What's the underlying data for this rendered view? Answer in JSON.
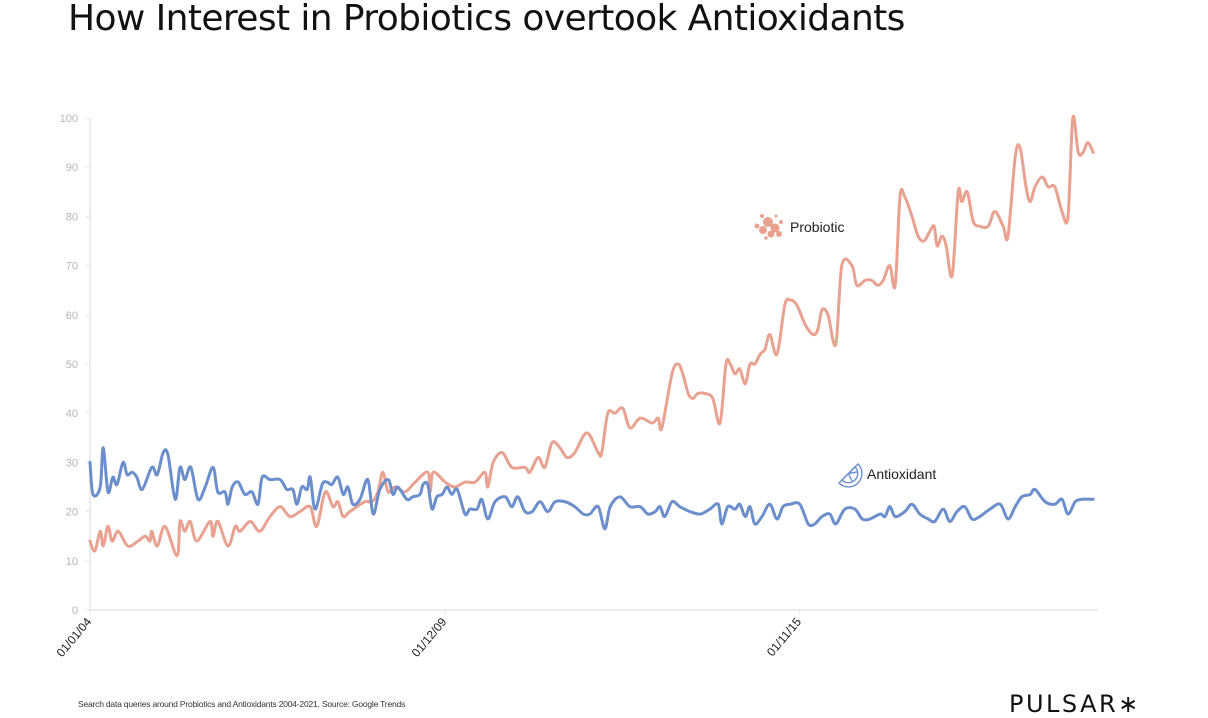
{
  "title": "How Interest in Probiotics overtook Antioxidants",
  "footnote": "Search data queries around Probiotics and Antioxidants 2004-2021. Source: Google Trends",
  "brand": "PULSAR∗",
  "chart_data": {
    "type": "line",
    "title": "How Interest in Probiotics overtook Antioxidants",
    "xlabel": "",
    "ylabel": "",
    "xlim": [
      2004,
      2020.8
    ],
    "ylim": [
      0,
      100
    ],
    "yticks": [
      0,
      10,
      20,
      30,
      40,
      50,
      60,
      70,
      80,
      90,
      100
    ],
    "xticks": [
      {
        "x": 2004.0,
        "label": "01/01/04"
      },
      {
        "x": 2009.92,
        "label": "01/12/09"
      },
      {
        "x": 2015.83,
        "label": "01/11/15"
      }
    ],
    "grid": false,
    "series": [
      {
        "name": "Probiotic",
        "color": "#e9a190",
        "icon": "bacteria-icon",
        "points": [
          [
            2004.0,
            14
          ],
          [
            2004.08,
            12
          ],
          [
            2004.17,
            16
          ],
          [
            2004.22,
            13
          ],
          [
            2004.3,
            17
          ],
          [
            2004.37,
            14
          ],
          [
            2004.47,
            16
          ],
          [
            2004.63,
            13
          ],
          [
            2004.8,
            14
          ],
          [
            2004.92,
            15
          ],
          [
            2005.0,
            14
          ],
          [
            2005.03,
            16
          ],
          [
            2005.12,
            13
          ],
          [
            2005.25,
            17
          ],
          [
            2005.45,
            11
          ],
          [
            2005.5,
            18
          ],
          [
            2005.58,
            16
          ],
          [
            2005.67,
            18
          ],
          [
            2005.78,
            14
          ],
          [
            2006.0,
            18
          ],
          [
            2006.05,
            15
          ],
          [
            2006.13,
            18
          ],
          [
            2006.3,
            13
          ],
          [
            2006.42,
            17
          ],
          [
            2006.5,
            16
          ],
          [
            2006.67,
            18
          ],
          [
            2006.83,
            16
          ],
          [
            2007.0,
            19
          ],
          [
            2007.17,
            21
          ],
          [
            2007.33,
            19
          ],
          [
            2007.5,
            20
          ],
          [
            2007.67,
            21
          ],
          [
            2007.78,
            17
          ],
          [
            2007.92,
            24
          ],
          [
            2008.05,
            21
          ],
          [
            2008.13,
            22
          ],
          [
            2008.22,
            19
          ],
          [
            2008.33,
            20
          ],
          [
            2008.58,
            22
          ],
          [
            2008.7,
            22
          ],
          [
            2008.8,
            24
          ],
          [
            2008.88,
            28
          ],
          [
            2008.97,
            24
          ],
          [
            2009.08,
            25
          ],
          [
            2009.25,
            24
          ],
          [
            2009.42,
            26
          ],
          [
            2009.63,
            28
          ],
          [
            2009.67,
            24
          ],
          [
            2009.72,
            28
          ],
          [
            2009.92,
            26
          ],
          [
            2010.08,
            25
          ],
          [
            2010.25,
            26
          ],
          [
            2010.42,
            26
          ],
          [
            2010.58,
            28
          ],
          [
            2010.63,
            25
          ],
          [
            2010.72,
            30
          ],
          [
            2010.87,
            32
          ],
          [
            2011.03,
            29
          ],
          [
            2011.25,
            29
          ],
          [
            2011.33,
            28
          ],
          [
            2011.47,
            31
          ],
          [
            2011.58,
            29
          ],
          [
            2011.7,
            34
          ],
          [
            2011.83,
            33
          ],
          [
            2011.95,
            31
          ],
          [
            2012.08,
            32
          ],
          [
            2012.28,
            36
          ],
          [
            2012.47,
            32
          ],
          [
            2012.53,
            32
          ],
          [
            2012.63,
            40
          ],
          [
            2012.75,
            40
          ],
          [
            2012.88,
            41
          ],
          [
            2013.0,
            37
          ],
          [
            2013.17,
            39
          ],
          [
            2013.37,
            38
          ],
          [
            2013.47,
            39
          ],
          [
            2013.53,
            37
          ],
          [
            2013.7,
            48
          ],
          [
            2013.8,
            50
          ],
          [
            2013.88,
            48
          ],
          [
            2013.97,
            44
          ],
          [
            2014.05,
            43
          ],
          [
            2014.13,
            44
          ],
          [
            2014.25,
            44
          ],
          [
            2014.38,
            43
          ],
          [
            2014.5,
            38
          ],
          [
            2014.6,
            50
          ],
          [
            2014.67,
            50
          ],
          [
            2014.75,
            48
          ],
          [
            2014.83,
            49
          ],
          [
            2014.92,
            46
          ],
          [
            2015.0,
            50
          ],
          [
            2015.08,
            50
          ],
          [
            2015.17,
            52
          ],
          [
            2015.25,
            53
          ],
          [
            2015.33,
            56
          ],
          [
            2015.45,
            52
          ],
          [
            2015.58,
            62
          ],
          [
            2015.67,
            63
          ],
          [
            2015.78,
            62
          ],
          [
            2015.92,
            58
          ],
          [
            2016.05,
            56
          ],
          [
            2016.13,
            57
          ],
          [
            2016.2,
            61
          ],
          [
            2016.3,
            60
          ],
          [
            2016.43,
            54
          ],
          [
            2016.53,
            70
          ],
          [
            2016.7,
            70
          ],
          [
            2016.78,
            66
          ],
          [
            2016.92,
            67
          ],
          [
            2017.03,
            67
          ],
          [
            2017.13,
            66
          ],
          [
            2017.22,
            67
          ],
          [
            2017.33,
            70
          ],
          [
            2017.42,
            66
          ],
          [
            2017.5,
            84
          ],
          [
            2017.58,
            84
          ],
          [
            2017.7,
            80
          ],
          [
            2017.8,
            76
          ],
          [
            2017.9,
            75
          ],
          [
            2018.0,
            77
          ],
          [
            2018.07,
            78
          ],
          [
            2018.12,
            74
          ],
          [
            2018.2,
            76
          ],
          [
            2018.27,
            74
          ],
          [
            2018.37,
            68
          ],
          [
            2018.47,
            85
          ],
          [
            2018.53,
            83
          ],
          [
            2018.62,
            85
          ],
          [
            2018.72,
            79
          ],
          [
            2018.83,
            78
          ],
          [
            2018.97,
            78
          ],
          [
            2019.08,
            81
          ],
          [
            2019.22,
            78
          ],
          [
            2019.3,
            76
          ],
          [
            2019.42,
            92
          ],
          [
            2019.5,
            94
          ],
          [
            2019.6,
            86
          ],
          [
            2019.67,
            83
          ],
          [
            2019.75,
            86
          ],
          [
            2019.87,
            88
          ],
          [
            2019.97,
            86
          ],
          [
            2020.08,
            86
          ],
          [
            2020.2,
            81
          ],
          [
            2020.3,
            80
          ],
          [
            2020.38,
            100
          ],
          [
            2020.47,
            93
          ],
          [
            2020.55,
            93
          ],
          [
            2020.63,
            95
          ],
          [
            2020.72,
            93
          ]
        ]
      },
      {
        "name": "Antioxidant",
        "color": "#6b8fcc",
        "icon": "lemon-slice-icon",
        "points": [
          [
            2004.0,
            30
          ],
          [
            2004.05,
            23.5
          ],
          [
            2004.17,
            25
          ],
          [
            2004.22,
            33
          ],
          [
            2004.3,
            24
          ],
          [
            2004.38,
            27
          ],
          [
            2004.45,
            25.5
          ],
          [
            2004.55,
            30
          ],
          [
            2004.62,
            27.5
          ],
          [
            2004.7,
            28
          ],
          [
            2004.78,
            27
          ],
          [
            2004.87,
            24.5
          ],
          [
            2005.03,
            29
          ],
          [
            2005.12,
            27.5
          ],
          [
            2005.22,
            32
          ],
          [
            2005.3,
            31.5
          ],
          [
            2005.42,
            22.5
          ],
          [
            2005.5,
            29
          ],
          [
            2005.58,
            26.5
          ],
          [
            2005.68,
            29
          ],
          [
            2005.8,
            22.5
          ],
          [
            2005.92,
            25
          ],
          [
            2006.05,
            29
          ],
          [
            2006.13,
            24
          ],
          [
            2006.25,
            24
          ],
          [
            2006.3,
            21.5
          ],
          [
            2006.37,
            25
          ],
          [
            2006.47,
            26
          ],
          [
            2006.58,
            23.5
          ],
          [
            2006.7,
            24
          ],
          [
            2006.8,
            21.5
          ],
          [
            2006.87,
            27
          ],
          [
            2007.0,
            26.5
          ],
          [
            2007.17,
            26.5
          ],
          [
            2007.28,
            24.5
          ],
          [
            2007.38,
            24.5
          ],
          [
            2007.45,
            21.5
          ],
          [
            2007.53,
            25
          ],
          [
            2007.62,
            24.5
          ],
          [
            2007.67,
            27
          ],
          [
            2007.75,
            20.5
          ],
          [
            2007.87,
            25.5
          ],
          [
            2007.95,
            26
          ],
          [
            2008.03,
            25.5
          ],
          [
            2008.13,
            27
          ],
          [
            2008.22,
            23.5
          ],
          [
            2008.3,
            25
          ],
          [
            2008.38,
            21.5
          ],
          [
            2008.5,
            22.5
          ],
          [
            2008.63,
            26.5
          ],
          [
            2008.72,
            19.5
          ],
          [
            2008.83,
            24.5
          ],
          [
            2008.97,
            26.5
          ],
          [
            2009.05,
            23.5
          ],
          [
            2009.13,
            25
          ],
          [
            2009.28,
            22.5
          ],
          [
            2009.38,
            23
          ],
          [
            2009.5,
            23.5
          ],
          [
            2009.55,
            25.5
          ],
          [
            2009.63,
            25.5
          ],
          [
            2009.7,
            20.5
          ],
          [
            2009.78,
            23
          ],
          [
            2009.87,
            23.5
          ],
          [
            2009.95,
            25
          ],
          [
            2010.03,
            23.5
          ],
          [
            2010.12,
            24.5
          ],
          [
            2010.25,
            19.5
          ],
          [
            2010.33,
            20.5
          ],
          [
            2010.45,
            20.5
          ],
          [
            2010.53,
            22.5
          ],
          [
            2010.63,
            18.5
          ],
          [
            2010.75,
            22
          ],
          [
            2010.92,
            23
          ],
          [
            2011.03,
            21
          ],
          [
            2011.13,
            23
          ],
          [
            2011.25,
            20
          ],
          [
            2011.37,
            20
          ],
          [
            2011.5,
            22
          ],
          [
            2011.63,
            20
          ],
          [
            2011.75,
            22
          ],
          [
            2011.92,
            22
          ],
          [
            2012.08,
            21
          ],
          [
            2012.22,
            19.5
          ],
          [
            2012.33,
            19.5
          ],
          [
            2012.47,
            21
          ],
          [
            2012.58,
            16.5
          ],
          [
            2012.67,
            21
          ],
          [
            2012.83,
            23
          ],
          [
            2013.0,
            21
          ],
          [
            2013.17,
            21
          ],
          [
            2013.3,
            19.5
          ],
          [
            2013.42,
            20
          ],
          [
            2013.5,
            21
          ],
          [
            2013.58,
            19
          ],
          [
            2013.7,
            22
          ],
          [
            2013.83,
            21
          ],
          [
            2014.0,
            20
          ],
          [
            2014.17,
            19.5
          ],
          [
            2014.33,
            20.5
          ],
          [
            2014.47,
            21.5
          ],
          [
            2014.53,
            17.5
          ],
          [
            2014.63,
            21
          ],
          [
            2014.75,
            20.5
          ],
          [
            2014.83,
            21.5
          ],
          [
            2014.92,
            19
          ],
          [
            2015.0,
            21
          ],
          [
            2015.08,
            17.5
          ],
          [
            2015.2,
            19
          ],
          [
            2015.33,
            21.5
          ],
          [
            2015.45,
            18.5
          ],
          [
            2015.55,
            21
          ],
          [
            2015.67,
            21.5
          ],
          [
            2015.83,
            21.5
          ],
          [
            2015.97,
            17.5
          ],
          [
            2016.08,
            17.5
          ],
          [
            2016.2,
            19
          ],
          [
            2016.33,
            19.5
          ],
          [
            2016.43,
            17.5
          ],
          [
            2016.58,
            20.5
          ],
          [
            2016.75,
            20.5
          ],
          [
            2016.87,
            18.5
          ],
          [
            2017.0,
            18.5
          ],
          [
            2017.17,
            19.5
          ],
          [
            2017.25,
            19
          ],
          [
            2017.33,
            21
          ],
          [
            2017.42,
            19
          ],
          [
            2017.58,
            20
          ],
          [
            2017.7,
            21.5
          ],
          [
            2017.83,
            19.5
          ],
          [
            2017.97,
            18.5
          ],
          [
            2018.08,
            18
          ],
          [
            2018.22,
            20.5
          ],
          [
            2018.33,
            18
          ],
          [
            2018.45,
            20
          ],
          [
            2018.58,
            21
          ],
          [
            2018.7,
            18.5
          ],
          [
            2018.83,
            19
          ],
          [
            2019.0,
            20.5
          ],
          [
            2019.17,
            21.5
          ],
          [
            2019.3,
            18.5
          ],
          [
            2019.42,
            21
          ],
          [
            2019.53,
            23
          ],
          [
            2019.67,
            23.5
          ],
          [
            2019.75,
            24.5
          ],
          [
            2019.92,
            22
          ],
          [
            2020.08,
            21.5
          ],
          [
            2020.2,
            22.5
          ],
          [
            2020.3,
            19.5
          ],
          [
            2020.42,
            22
          ],
          [
            2020.53,
            22.5
          ],
          [
            2020.67,
            22.5
          ],
          [
            2020.72,
            22.5
          ]
        ]
      }
    ]
  }
}
